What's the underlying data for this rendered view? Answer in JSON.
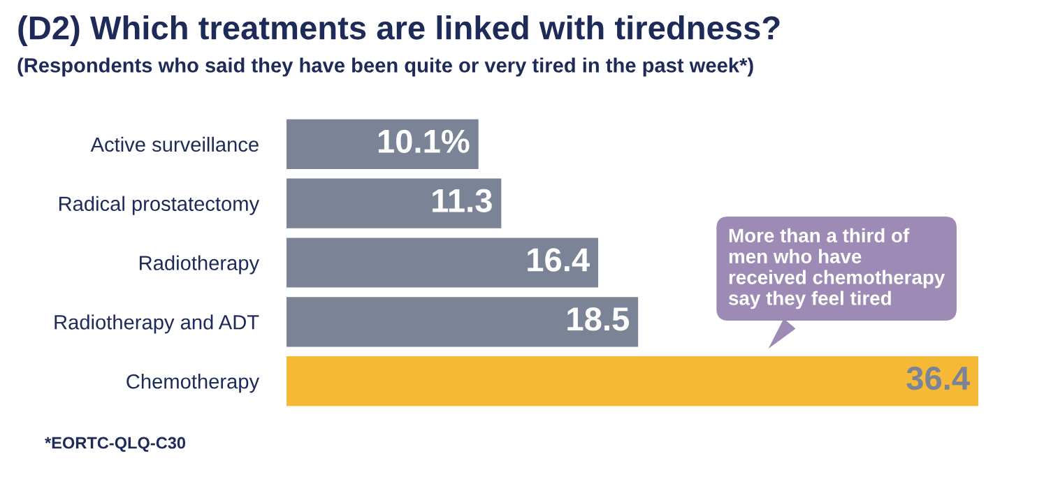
{
  "chart_data": {
    "type": "bar",
    "orientation": "horizontal",
    "title": "(D2) Which treatments are linked with tiredness?",
    "subtitle": "(Respondents who said they have been quite or very tired in the past week*)",
    "categories": [
      "Active surveillance",
      "Radical prostatectomy",
      "Radiotherapy",
      "Radiotherapy and ADT",
      "Chemotherapy"
    ],
    "values": [
      10.1,
      11.3,
      16.4,
      18.5,
      36.4
    ],
    "value_labels": [
      "10.1%",
      "11.3",
      "16.4",
      "18.5",
      "36.4"
    ],
    "colors": [
      "#7b8497",
      "#7b8497",
      "#7b8497",
      "#7b8497",
      "#f6b935"
    ],
    "annotations": [
      "More than a third of\nmen who have\nreceived chemotherapy\nsay they feel tired",
      "*EORTC-QLQ-C30"
    ],
    "grid": false,
    "legend": false
  }
}
